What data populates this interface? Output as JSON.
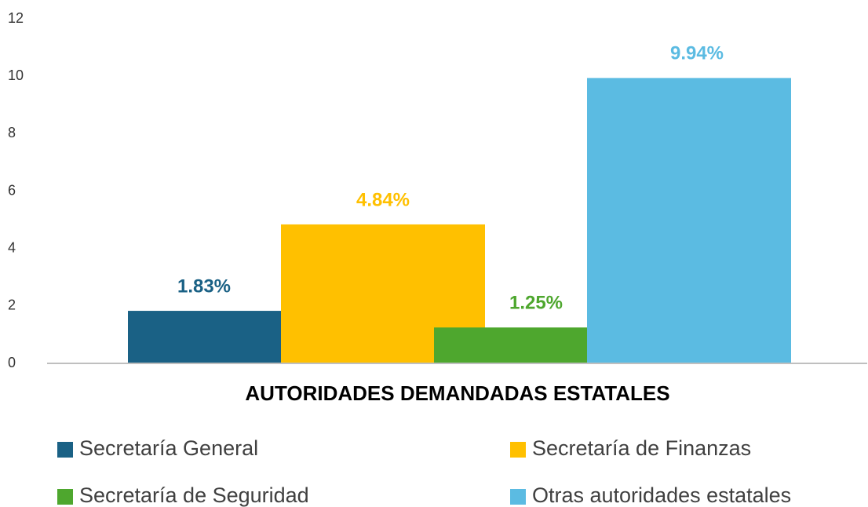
{
  "chart_data": {
    "type": "bar",
    "x_label": "AUTORIDADES DEMANDADAS ESTATALES",
    "categories": [
      null
    ],
    "series": [
      {
        "name": "Secretaría General",
        "color": "#1a6185",
        "values": [
          1.83
        ],
        "value_labels": [
          "1.83%"
        ]
      },
      {
        "name": "Secretaría de Finanzas",
        "color": "#ffc000",
        "values": [
          4.84
        ],
        "value_labels": [
          "4.84%"
        ]
      },
      {
        "name": "Secretaría de Seguridad",
        "color": "#4ea72e",
        "values": [
          1.25
        ],
        "value_labels": [
          "1.25%"
        ]
      },
      {
        "name": "Otras autoridades estatales",
        "color": "#5bbbe2",
        "values": [
          9.94
        ],
        "value_labels": [
          "9.94%"
        ]
      }
    ],
    "ylim": [
      0,
      12
    ],
    "yticks": [
      0,
      2,
      4,
      6,
      8,
      10,
      12
    ],
    "grid": false,
    "legend": "bottom"
  }
}
